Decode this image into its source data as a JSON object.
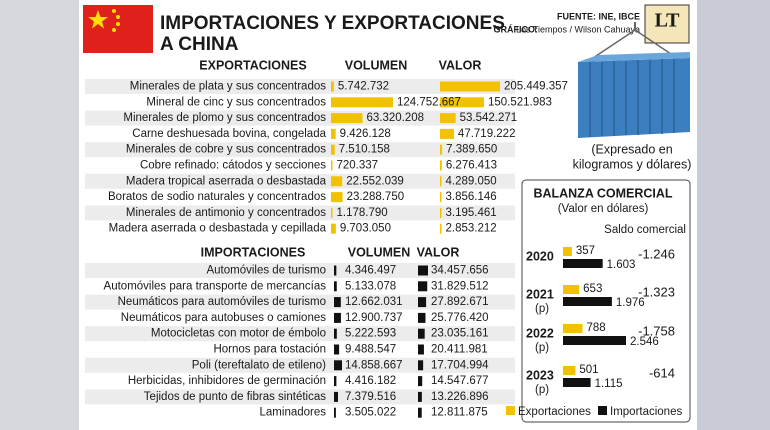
{
  "header": {
    "title_line1": "IMPORTACIONES Y EXPORTACIONES",
    "title_line2": "A CHINA",
    "source": "FUENTE: INE, IBCE",
    "credit_label": "GRÁFICO:",
    "credit": "Los Tiempos / Wilson Cahuaya",
    "logo": "LT"
  },
  "exports": {
    "heading": "EXPORTACIONES",
    "volume_heading": "VOLUMEN",
    "value_heading": "VALOR",
    "color": "#f2c200",
    "rows": [
      {
        "product": "Minerales de plata y sus concentrados",
        "volume": {
          "value": 5742732,
          "label": "5.742.732"
        },
        "value": {
          "value": 205449357,
          "label": "205.449.357"
        }
      },
      {
        "product": "Mineral de cinc y sus concentrados",
        "volume": {
          "value": 124752667,
          "label": "124.752.667"
        },
        "value": {
          "value": 150521983,
          "label": "150.521.983"
        }
      },
      {
        "product": "Minerales de plomo y sus concentrados",
        "volume": {
          "value": 63320208,
          "label": "63.320.208"
        },
        "value": {
          "value": 53542271,
          "label": "53.542.271"
        }
      },
      {
        "product": "Carne deshuesada bovina, congelada",
        "volume": {
          "value": 9426128,
          "label": "9.426.128"
        },
        "value": {
          "value": 47719222,
          "label": "47.719.222"
        }
      },
      {
        "product": "Minerales de cobre y sus concentrados",
        "volume": {
          "value": 7510158,
          "label": "7.510.158"
        },
        "value": {
          "value": 7389650,
          "label": "7.389.650"
        }
      },
      {
        "product": "Cobre refinado: cátodos y secciones",
        "volume": {
          "value": 720337,
          "label": "720.337"
        },
        "value": {
          "value": 6276413,
          "label": "6.276.413"
        }
      },
      {
        "product": "Madera tropical aserrada o desbastada",
        "volume": {
          "value": 22552039,
          "label": "22.552.039"
        },
        "value": {
          "value": 4289050,
          "label": "4.289.050"
        }
      },
      {
        "product": "Boratos de sodio naturales y concentrados",
        "volume": {
          "value": 23288750,
          "label": "23.288.750"
        },
        "value": {
          "value": 3856146,
          "label": "3.856.146"
        }
      },
      {
        "product": "Minerales de antimonio y concentrados",
        "volume": {
          "value": 1178790,
          "label": "1.178.790"
        },
        "value": {
          "value": 3195461,
          "label": "3.195.461"
        }
      },
      {
        "product": "Madera aserrada o desbastada y cepillada",
        "volume": {
          "value": 9703050,
          "label": "9.703.050"
        },
        "value": {
          "value": 2853212,
          "label": "2.853.212"
        }
      }
    ]
  },
  "imports": {
    "heading": "IMPORTACIONES",
    "volume_heading": "VOLUMEN",
    "value_heading": "VALOR",
    "color": "#111111",
    "rows": [
      {
        "product": "Automóviles de turismo",
        "volume": {
          "value": 4346497,
          "label": "4.346.497"
        },
        "value": {
          "value": 34457656,
          "label": "34.457.656"
        }
      },
      {
        "product": "Automóviles para transporte de mercancías",
        "volume": {
          "value": 5133078,
          "label": "5.133.078"
        },
        "value": {
          "value": 31829512,
          "label": "31.829.512"
        }
      },
      {
        "product": "Neumáticos para automóviles de turismo",
        "volume": {
          "value": 12662031,
          "label": "12.662.031"
        },
        "value": {
          "value": 27892671,
          "label": "27.892.671"
        }
      },
      {
        "product": "Neumáticos para autobuses o camiones",
        "volume": {
          "value": 12900737,
          "label": "12.900.737"
        },
        "value": {
          "value": 25776420,
          "label": "25.776.420"
        }
      },
      {
        "product": "Motocicletas con motor de émbolo",
        "volume": {
          "value": 5222593,
          "label": "5.222.593"
        },
        "value": {
          "value": 23035161,
          "label": "23.035.161"
        }
      },
      {
        "product": "Hornos para tostación",
        "volume": {
          "value": 9488547,
          "label": "9.488.547"
        },
        "value": {
          "value": 20411981,
          "label": "20.411.981"
        }
      },
      {
        "product": "Poli (tereftalato de etileno)",
        "volume": {
          "value": 14858667,
          "label": "14.858.667"
        },
        "value": {
          "value": 17704994,
          "label": "17.704.994"
        }
      },
      {
        "product": "Herbicidas, inhibidores de germinación",
        "volume": {
          "value": 4416182,
          "label": "4.416.182"
        },
        "value": {
          "value": 14547677,
          "label": "14.547.677"
        }
      },
      {
        "product": "Tejidos de punto de fibras sintéticas",
        "volume": {
          "value": 7379516,
          "label": "7.379.516"
        },
        "value": {
          "value": 13226896,
          "label": "13.226.896"
        }
      },
      {
        "product": "Laminadores",
        "volume": {
          "value": 3505022,
          "label": "3.505.022"
        },
        "value": {
          "value": 12811875,
          "label": "12.811.875"
        }
      }
    ]
  },
  "container_note": [
    "(Expresado en",
    "kilogramos y dólares)"
  ],
  "balance": {
    "title": "BALANZA COMERCIAL",
    "subtitle": "(Valor en dólares)",
    "saldo_heading": "Saldo comercial",
    "years": [
      {
        "year": "2020",
        "exports": 357,
        "imports": {
          "value": 1603,
          "label": "1.603"
        },
        "saldo": {
          "value": -1246,
          "label": "-1.246"
        }
      },
      {
        "year": "2021",
        "note": "(p)",
        "exports": 653,
        "imports": {
          "value": 1976,
          "label": "1.976"
        },
        "saldo": {
          "value": -1323,
          "label": "-1.323"
        }
      },
      {
        "year": "2022",
        "note": "(p)",
        "exports": 788,
        "imports": {
          "value": 2546,
          "label": "2.546"
        },
        "saldo": {
          "value": -1758,
          "label": "-1.758"
        }
      },
      {
        "year": "2023",
        "note": "(p)",
        "exports": 501,
        "imports": {
          "value": 1115,
          "label": "1.115"
        },
        "saldo": -614
      }
    ],
    "legend": [
      "Exportaciones",
      "Importaciones"
    ]
  }
}
